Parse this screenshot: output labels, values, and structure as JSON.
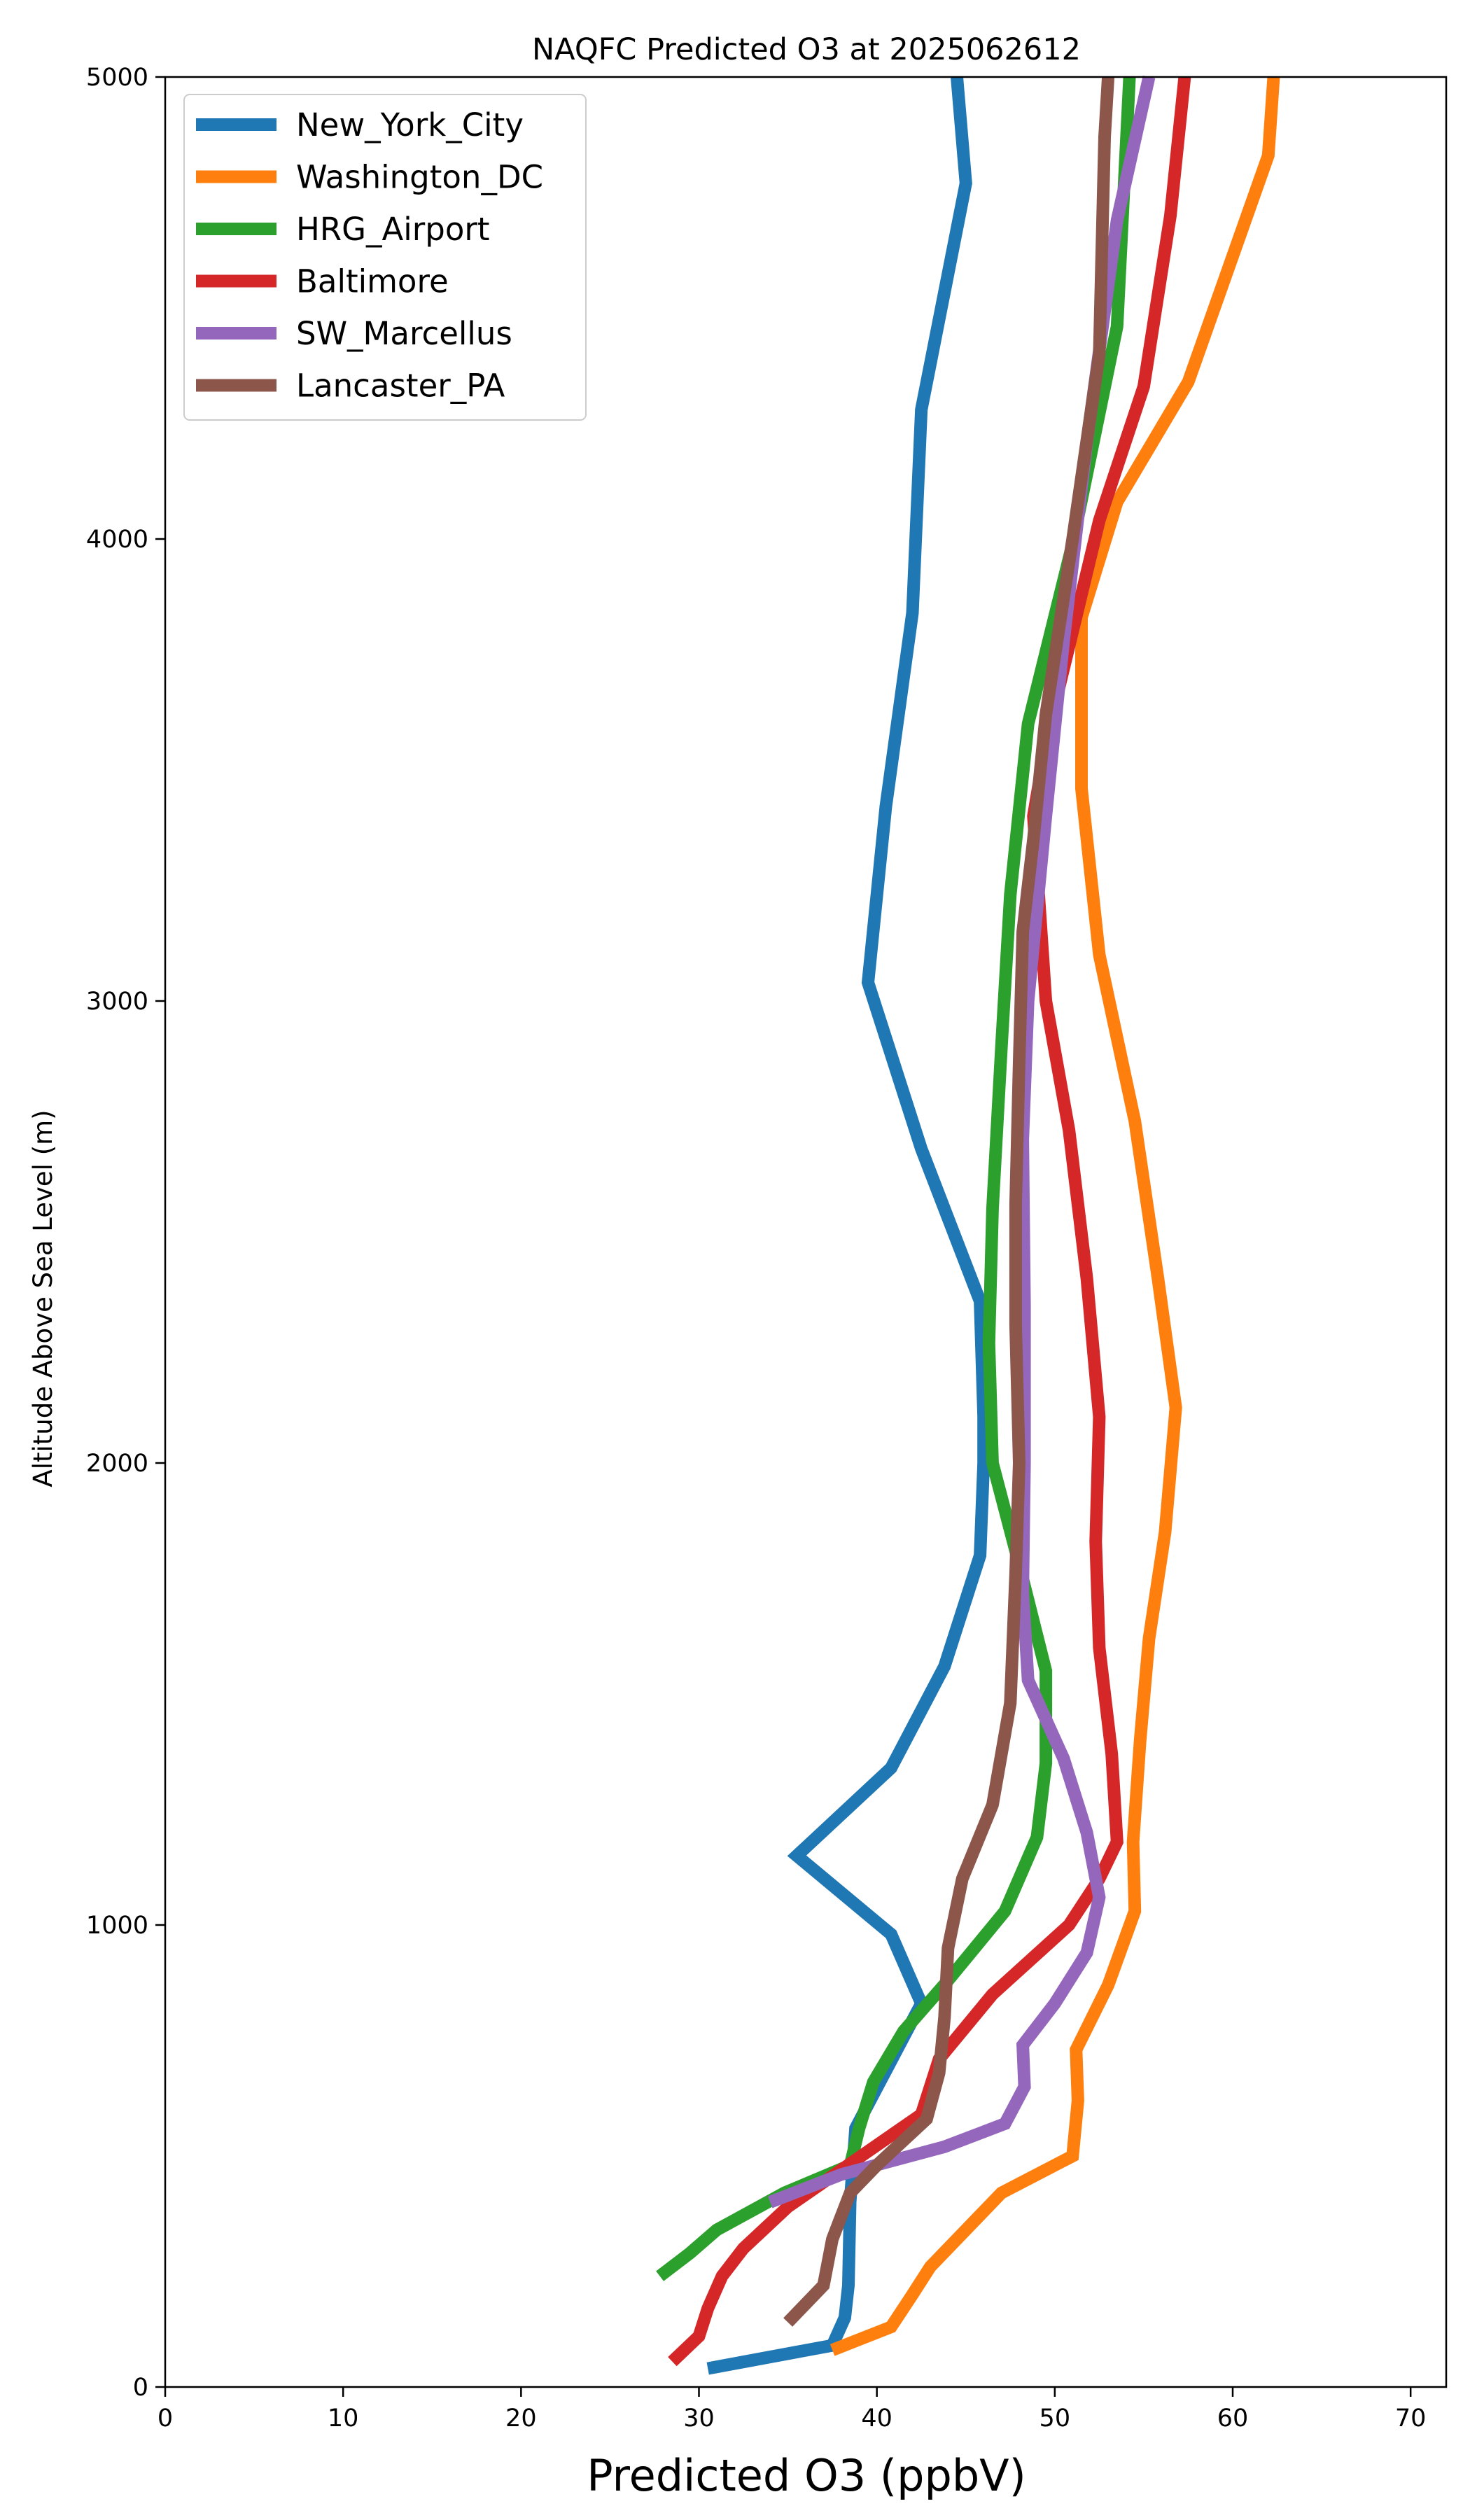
{
  "chart_data": {
    "type": "line",
    "title": "NAQFC Predicted O3 at 2025062612",
    "xlabel": "Predicted O3 (ppbV)",
    "ylabel": "Altitude Above Sea Level (m)",
    "xlim": [
      0,
      72
    ],
    "ylim": [
      0,
      5000
    ],
    "xticks": [
      0,
      10,
      20,
      30,
      40,
      50,
      60,
      70
    ],
    "yticks": [
      0,
      1000,
      2000,
      3000,
      4000,
      5000
    ],
    "grid": false,
    "legend": "top-left",
    "series": [
      {
        "name": "New_York_City",
        "color": "#1f77b4",
        "points": [
          [
            30.5,
            40
          ],
          [
            37.5,
            90
          ],
          [
            38.2,
            150
          ],
          [
            38.4,
            220
          ],
          [
            38.5,
            400
          ],
          [
            38.8,
            560
          ],
          [
            42.5,
            830
          ],
          [
            40.8,
            980
          ],
          [
            35.5,
            1150
          ],
          [
            40.8,
            1340
          ],
          [
            43.8,
            1560
          ],
          [
            45.8,
            1800
          ],
          [
            46.0,
            2000
          ],
          [
            46.0,
            2100
          ],
          [
            45.8,
            2350
          ],
          [
            42.5,
            2680
          ],
          [
            39.5,
            3040
          ],
          [
            40.5,
            3420
          ],
          [
            42.0,
            3840
          ],
          [
            42.5,
            4280
          ],
          [
            45.0,
            4770
          ],
          [
            44.5,
            5000
          ]
        ]
      },
      {
        "name": "Washington_DC",
        "color": "#ff7f0e",
        "points": [
          [
            37.5,
            80
          ],
          [
            40.8,
            130
          ],
          [
            42.0,
            200
          ],
          [
            43.0,
            260
          ],
          [
            47.0,
            420
          ],
          [
            51.0,
            500
          ],
          [
            51.3,
            620
          ],
          [
            51.2,
            730
          ],
          [
            53.0,
            870
          ],
          [
            54.5,
            1030
          ],
          [
            54.4,
            1180
          ],
          [
            54.8,
            1400
          ],
          [
            55.3,
            1620
          ],
          [
            56.2,
            1850
          ],
          [
            56.8,
            2120
          ],
          [
            55.8,
            2400
          ],
          [
            54.5,
            2740
          ],
          [
            52.5,
            3100
          ],
          [
            51.5,
            3460
          ],
          [
            51.5,
            3830
          ],
          [
            53.5,
            4080
          ],
          [
            57.5,
            4340
          ],
          [
            62.0,
            4830
          ],
          [
            62.3,
            5000
          ]
        ]
      },
      {
        "name": "HRG_Airport",
        "color": "#2ca02c",
        "points": [
          [
            27.8,
            240
          ],
          [
            29.5,
            290
          ],
          [
            31.0,
            340
          ],
          [
            34.8,
            420
          ],
          [
            38.5,
            480
          ],
          [
            39.0,
            560
          ],
          [
            39.8,
            660
          ],
          [
            41.5,
            770
          ],
          [
            44.0,
            880
          ],
          [
            47.2,
            1030
          ],
          [
            49.0,
            1190
          ],
          [
            49.5,
            1350
          ],
          [
            49.5,
            1550
          ],
          [
            48.0,
            1780
          ],
          [
            46.5,
            2000
          ],
          [
            46.3,
            2260
          ],
          [
            46.5,
            2550
          ],
          [
            47.0,
            2900
          ],
          [
            47.5,
            3230
          ],
          [
            48.5,
            3600
          ],
          [
            51.0,
            3990
          ],
          [
            53.5,
            4460
          ],
          [
            54.2,
            5000
          ]
        ]
      },
      {
        "name": "Baltimore",
        "color": "#d62728",
        "points": [
          [
            28.5,
            55
          ],
          [
            30.0,
            110
          ],
          [
            30.5,
            170
          ],
          [
            31.3,
            240
          ],
          [
            32.5,
            300
          ],
          [
            35.0,
            390
          ],
          [
            42.5,
            590
          ],
          [
            43.5,
            710
          ],
          [
            46.5,
            850
          ],
          [
            50.8,
            1000
          ],
          [
            52.5,
            1100
          ],
          [
            53.5,
            1180
          ],
          [
            53.2,
            1370
          ],
          [
            52.5,
            1600
          ],
          [
            52.3,
            1830
          ],
          [
            52.5,
            2100
          ],
          [
            51.8,
            2400
          ],
          [
            50.8,
            2720
          ],
          [
            49.5,
            3000
          ],
          [
            48.8,
            3400
          ],
          [
            49.5,
            3560
          ],
          [
            51.0,
            3800
          ],
          [
            52.5,
            4040
          ],
          [
            55.0,
            4330
          ],
          [
            56.5,
            4700
          ],
          [
            57.3,
            5000
          ]
        ]
      },
      {
        "name": "SW_Marcellus",
        "color": "#9467bd",
        "points": [
          [
            34.0,
            400
          ],
          [
            38.0,
            460
          ],
          [
            43.8,
            520
          ],
          [
            47.2,
            570
          ],
          [
            48.3,
            650
          ],
          [
            48.2,
            740
          ],
          [
            50.0,
            830
          ],
          [
            51.8,
            940
          ],
          [
            52.5,
            1060
          ],
          [
            51.8,
            1200
          ],
          [
            50.5,
            1360
          ],
          [
            48.5,
            1530
          ],
          [
            48.2,
            1720
          ],
          [
            48.3,
            2000
          ],
          [
            48.3,
            2340
          ],
          [
            48.2,
            2700
          ],
          [
            48.5,
            3000
          ],
          [
            49.5,
            3400
          ],
          [
            50.5,
            3780
          ],
          [
            51.8,
            4210
          ],
          [
            53.5,
            4690
          ],
          [
            55.3,
            5000
          ]
        ]
      },
      {
        "name": "Lancaster_PA",
        "color": "#8c564b",
        "points": [
          [
            35.0,
            140
          ],
          [
            36.0,
            180
          ],
          [
            37.0,
            220
          ],
          [
            37.5,
            320
          ],
          [
            38.5,
            420
          ],
          [
            40.0,
            480
          ],
          [
            42.8,
            580
          ],
          [
            43.5,
            680
          ],
          [
            43.8,
            800
          ],
          [
            44.0,
            950
          ],
          [
            44.8,
            1100
          ],
          [
            46.5,
            1260
          ],
          [
            47.5,
            1480
          ],
          [
            47.8,
            1760
          ],
          [
            48.0,
            2000
          ],
          [
            47.8,
            2300
          ],
          [
            47.8,
            2560
          ],
          [
            48.0,
            2870
          ],
          [
            48.2,
            3150
          ],
          [
            48.8,
            3350
          ],
          [
            49.5,
            3620
          ],
          [
            51.0,
            4000
          ],
          [
            52.5,
            4400
          ],
          [
            52.8,
            4870
          ],
          [
            53.0,
            5000
          ]
        ]
      }
    ]
  }
}
